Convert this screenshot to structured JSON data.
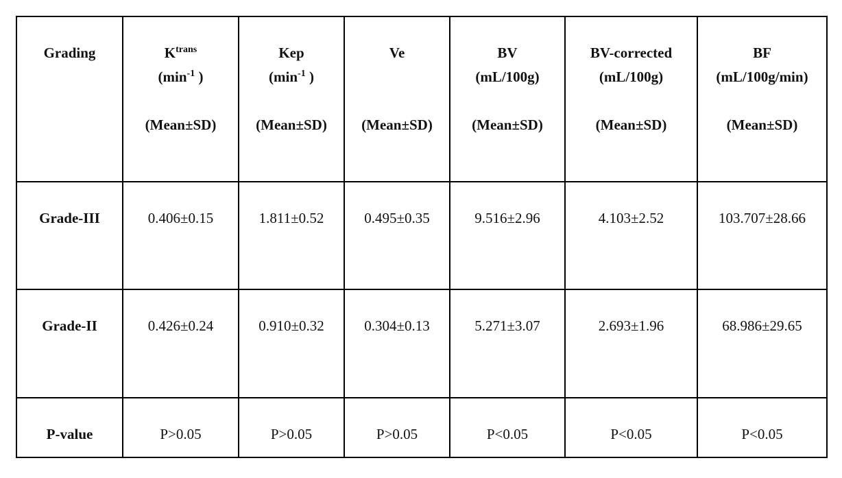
{
  "table": {
    "header": [
      {
        "name": "Grading"
      },
      {
        "name": "K",
        "name_sup": "trans",
        "unit": "(min",
        "unit_sup": "-1",
        "unit_close": " )",
        "stat": "(Mean±SD)"
      },
      {
        "name": "Kep",
        "unit": "(min",
        "unit_sup": "-1",
        "unit_close": " )",
        "stat": "(Mean±SD)"
      },
      {
        "name": "Ve",
        "stat": "(Mean±SD)"
      },
      {
        "name": "BV",
        "unit": "(mL/100g)",
        "stat": "(Mean±SD)"
      },
      {
        "name": "BV-corrected",
        "unit": "(mL/100g)",
        "stat": "(Mean±SD)"
      },
      {
        "name": "BF",
        "unit": "(mL/100g/min)",
        "stat": "(Mean±SD)"
      }
    ],
    "rows": [
      [
        "Grade-III",
        "0.406±0.15",
        "1.811±0.52",
        "0.495±0.35",
        "9.516±2.96",
        "4.103±2.52",
        "103.707±28.66"
      ],
      [
        "Grade-II",
        "0.426±0.24",
        "0.910±0.32",
        "0.304±0.13",
        "5.271±3.07",
        "2.693±1.96",
        "68.986±29.65"
      ],
      [
        "P-value",
        "P>0.05",
        "P>0.05",
        "P>0.05",
        "P<0.05",
        "P<0.05",
        "P<0.05"
      ]
    ]
  }
}
